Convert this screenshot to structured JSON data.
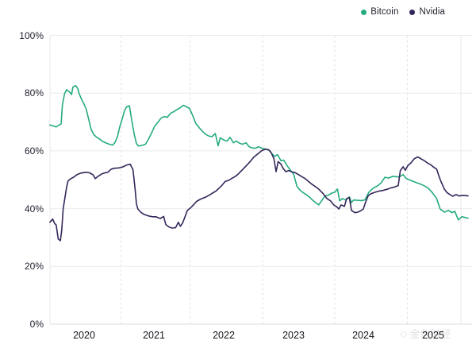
{
  "legend": {
    "items": [
      {
        "label": "Bitcoin",
        "color": "#25ab7f"
      },
      {
        "label": "Nvidia",
        "color": "#35265a"
      }
    ]
  },
  "watermark": {
    "icon": "◇",
    "text": "金色财经"
  },
  "colors": {
    "background": "#ffffff",
    "grid_horizontal": "#ebebeb",
    "grid_vertical": "#e2e2e2",
    "axis_line": "#dcdcdc",
    "plot_border": "#e8e8e8",
    "tick_text": "#222230"
  },
  "chart_data": {
    "type": "line",
    "title": "",
    "xlabel": "",
    "ylabel": "",
    "legend_position": "top-right",
    "grid": {
      "horizontal": "solid",
      "vertical": "dashed"
    },
    "x_ticks": [
      {
        "label": "2020",
        "value": 2020
      },
      {
        "label": "2021",
        "value": 2021
      },
      {
        "label": "2022",
        "value": 2022
      },
      {
        "label": "2023",
        "value": 2023
      },
      {
        "label": "2024",
        "value": 2024
      },
      {
        "label": "2025",
        "value": 2025
      }
    ],
    "y_ticks": [
      {
        "label": "0%",
        "value": 0
      },
      {
        "label": "20%",
        "value": 20
      },
      {
        "label": "40%",
        "value": 40
      },
      {
        "label": "60%",
        "value": 60
      },
      {
        "label": "80%",
        "value": 80
      },
      {
        "label": "100%",
        "value": 100
      }
    ],
    "xlim": [
      2019.5,
      2025.55
    ],
    "ylim": [
      0,
      100
    ],
    "v_gridline_x": [
      2020.53,
      2021.52,
      2022.56,
      2023.59,
      2024.63
    ],
    "series": [
      {
        "name": "Bitcoin",
        "color": "#25ab7f",
        "points": [
          [
            2019.51,
            69
          ],
          [
            2019.56,
            68.6
          ],
          [
            2019.6,
            68.3
          ],
          [
            2019.64,
            68.9
          ],
          [
            2019.67,
            69.3
          ],
          [
            2019.69,
            76
          ],
          [
            2019.72,
            79.8
          ],
          [
            2019.75,
            81.2
          ],
          [
            2019.8,
            80.2
          ],
          [
            2019.82,
            79.5
          ],
          [
            2019.84,
            82.1
          ],
          [
            2019.88,
            82.6
          ],
          [
            2019.91,
            81.5
          ],
          [
            2019.93,
            79.8
          ],
          [
            2019.97,
            77.5
          ],
          [
            2020.0,
            76.2
          ],
          [
            2020.03,
            74.5
          ],
          [
            2020.07,
            70.5
          ],
          [
            2020.1,
            67.5
          ],
          [
            2020.14,
            65.6
          ],
          [
            2020.18,
            64.7
          ],
          [
            2020.23,
            64
          ],
          [
            2020.27,
            63.2
          ],
          [
            2020.32,
            62.7
          ],
          [
            2020.36,
            62.3
          ],
          [
            2020.41,
            62
          ],
          [
            2020.44,
            62.8
          ],
          [
            2020.48,
            65
          ],
          [
            2020.51,
            68.3
          ],
          [
            2020.55,
            71.4
          ],
          [
            2020.58,
            74
          ],
          [
            2020.61,
            75.3
          ],
          [
            2020.65,
            75.6
          ],
          [
            2020.68,
            71
          ],
          [
            2020.72,
            65.5
          ],
          [
            2020.75,
            62.5
          ],
          [
            2020.78,
            61.7
          ],
          [
            2020.83,
            61.9
          ],
          [
            2020.88,
            62.3
          ],
          [
            2020.92,
            64
          ],
          [
            2020.97,
            66.4
          ],
          [
            2021.01,
            68.5
          ],
          [
            2021.06,
            70
          ],
          [
            2021.1,
            71.3
          ],
          [
            2021.15,
            71.9
          ],
          [
            2021.19,
            71.6
          ],
          [
            2021.24,
            73
          ],
          [
            2021.28,
            73.5
          ],
          [
            2021.33,
            74.3
          ],
          [
            2021.38,
            75
          ],
          [
            2021.42,
            75.8
          ],
          [
            2021.47,
            75.2
          ],
          [
            2021.51,
            74.7
          ],
          [
            2021.56,
            72
          ],
          [
            2021.6,
            69.5
          ],
          [
            2021.65,
            68
          ],
          [
            2021.69,
            66.9
          ],
          [
            2021.74,
            65.8
          ],
          [
            2021.78,
            65.2
          ],
          [
            2021.83,
            64.9
          ],
          [
            2021.88,
            66
          ],
          [
            2021.92,
            61.8
          ],
          [
            2021.95,
            64.5
          ],
          [
            2022.0,
            63.8
          ],
          [
            2022.05,
            63.4
          ],
          [
            2022.09,
            64.7
          ],
          [
            2022.14,
            62.8
          ],
          [
            2022.18,
            63.4
          ],
          [
            2022.23,
            62.6
          ],
          [
            2022.27,
            62.3
          ],
          [
            2022.32,
            62.8
          ],
          [
            2022.36,
            61.5
          ],
          [
            2022.41,
            61
          ],
          [
            2022.45,
            60.9
          ],
          [
            2022.5,
            61.4
          ],
          [
            2022.55,
            60.9
          ],
          [
            2022.59,
            60.7
          ],
          [
            2022.64,
            60.4
          ],
          [
            2022.68,
            59.3
          ],
          [
            2022.73,
            58.1
          ],
          [
            2022.77,
            58.7
          ],
          [
            2022.82,
            56.6
          ],
          [
            2022.86,
            56.8
          ],
          [
            2022.91,
            54.8
          ],
          [
            2022.95,
            53.5
          ],
          [
            2023.0,
            52
          ],
          [
            2023.05,
            47.7
          ],
          [
            2023.09,
            46.5
          ],
          [
            2023.14,
            45.5
          ],
          [
            2023.18,
            44.9
          ],
          [
            2023.23,
            44
          ],
          [
            2023.27,
            43
          ],
          [
            2023.32,
            42
          ],
          [
            2023.36,
            41.3
          ],
          [
            2023.41,
            43
          ],
          [
            2023.45,
            44.4
          ],
          [
            2023.5,
            44.7
          ],
          [
            2023.55,
            45.4
          ],
          [
            2023.59,
            45.7
          ],
          [
            2023.63,
            46.8
          ],
          [
            2023.66,
            42.7
          ],
          [
            2023.7,
            43.5
          ],
          [
            2023.75,
            43
          ],
          [
            2023.8,
            44.1
          ],
          [
            2023.83,
            42.1
          ],
          [
            2023.86,
            43
          ],
          [
            2023.91,
            42.9
          ],
          [
            2023.97,
            42.8
          ],
          [
            2024.02,
            43
          ],
          [
            2024.08,
            45.7
          ],
          [
            2024.14,
            47.1
          ],
          [
            2024.19,
            47.7
          ],
          [
            2024.25,
            48.8
          ],
          [
            2024.31,
            50.9
          ],
          [
            2024.36,
            50.6
          ],
          [
            2024.42,
            51.2
          ],
          [
            2024.48,
            51
          ],
          [
            2024.52,
            51.1
          ],
          [
            2024.57,
            51.8
          ],
          [
            2024.61,
            50.5
          ],
          [
            2024.66,
            50
          ],
          [
            2024.7,
            49.6
          ],
          [
            2024.76,
            49
          ],
          [
            2024.82,
            48.5
          ],
          [
            2024.88,
            47.8
          ],
          [
            2024.93,
            47.1
          ],
          [
            2024.99,
            45.5
          ],
          [
            2025.05,
            43.5
          ],
          [
            2025.1,
            39.9
          ],
          [
            2025.16,
            38.8
          ],
          [
            2025.22,
            39.4
          ],
          [
            2025.27,
            38.6
          ],
          [
            2025.31,
            39.1
          ],
          [
            2025.36,
            36.1
          ],
          [
            2025.41,
            37.2
          ],
          [
            2025.47,
            36.9
          ],
          [
            2025.5,
            36.7
          ]
        ]
      },
      {
        "name": "Nvidia",
        "color": "#35265a",
        "points": [
          [
            2019.51,
            35.3
          ],
          [
            2019.55,
            36.4
          ],
          [
            2019.58,
            34.8
          ],
          [
            2019.6,
            34.4
          ],
          [
            2019.63,
            29.5
          ],
          [
            2019.66,
            28.9
          ],
          [
            2019.68,
            32.5
          ],
          [
            2019.7,
            39.9
          ],
          [
            2019.73,
            44.4
          ],
          [
            2019.75,
            47.5
          ],
          [
            2019.77,
            49.6
          ],
          [
            2019.81,
            50.4
          ],
          [
            2019.85,
            50.9
          ],
          [
            2019.9,
            51.8
          ],
          [
            2019.95,
            52.3
          ],
          [
            2020.02,
            52.6
          ],
          [
            2020.08,
            52.4
          ],
          [
            2020.13,
            51.7
          ],
          [
            2020.16,
            50.4
          ],
          [
            2020.2,
            51.2
          ],
          [
            2020.25,
            52
          ],
          [
            2020.3,
            52.4
          ],
          [
            2020.34,
            52.6
          ],
          [
            2020.39,
            53.7
          ],
          [
            2020.44,
            54
          ],
          [
            2020.5,
            54.1
          ],
          [
            2020.56,
            54.5
          ],
          [
            2020.61,
            55.1
          ],
          [
            2020.66,
            55.4
          ],
          [
            2020.7,
            53.5
          ],
          [
            2020.73,
            47.1
          ],
          [
            2020.75,
            41.6
          ],
          [
            2020.77,
            39.9
          ],
          [
            2020.81,
            38.8
          ],
          [
            2020.86,
            38
          ],
          [
            2020.92,
            37.5
          ],
          [
            2020.98,
            37.2
          ],
          [
            2021.03,
            37.2
          ],
          [
            2021.09,
            36.6
          ],
          [
            2021.14,
            37.3
          ],
          [
            2021.17,
            34.5
          ],
          [
            2021.22,
            33.6
          ],
          [
            2021.26,
            33.3
          ],
          [
            2021.31,
            33.4
          ],
          [
            2021.35,
            35.3
          ],
          [
            2021.38,
            33.9
          ],
          [
            2021.41,
            35
          ],
          [
            2021.44,
            36.8
          ],
          [
            2021.48,
            39.4
          ],
          [
            2021.52,
            40.2
          ],
          [
            2021.57,
            41.4
          ],
          [
            2021.61,
            42.5
          ],
          [
            2021.66,
            43.2
          ],
          [
            2021.7,
            43.6
          ],
          [
            2021.75,
            44.1
          ],
          [
            2021.8,
            44.8
          ],
          [
            2021.84,
            45.4
          ],
          [
            2021.89,
            46.1
          ],
          [
            2021.93,
            47
          ],
          [
            2021.98,
            48.2
          ],
          [
            2022.02,
            49.4
          ],
          [
            2022.07,
            49.8
          ],
          [
            2022.11,
            50.4
          ],
          [
            2022.16,
            51.1
          ],
          [
            2022.2,
            51.8
          ],
          [
            2022.26,
            53.3
          ],
          [
            2022.32,
            54.8
          ],
          [
            2022.38,
            56.3
          ],
          [
            2022.43,
            57.8
          ],
          [
            2022.49,
            59
          ],
          [
            2022.55,
            60.2
          ],
          [
            2022.6,
            60.6
          ],
          [
            2022.65,
            60.3
          ],
          [
            2022.68,
            59.4
          ],
          [
            2022.72,
            57.2
          ],
          [
            2022.75,
            52.8
          ],
          [
            2022.78,
            56.3
          ],
          [
            2022.82,
            55.4
          ],
          [
            2022.85,
            54
          ],
          [
            2022.89,
            52.8
          ],
          [
            2022.93,
            53.2
          ],
          [
            2022.98,
            52.7
          ],
          [
            2023.02,
            52.5
          ],
          [
            2023.07,
            51.8
          ],
          [
            2023.11,
            51.2
          ],
          [
            2023.16,
            50.5
          ],
          [
            2023.2,
            49.7
          ],
          [
            2023.26,
            48.5
          ],
          [
            2023.32,
            47.5
          ],
          [
            2023.36,
            46.8
          ],
          [
            2023.42,
            45.3
          ],
          [
            2023.48,
            43.5
          ],
          [
            2023.53,
            42.7
          ],
          [
            2023.58,
            41.2
          ],
          [
            2023.61,
            40.8
          ],
          [
            2023.65,
            39.9
          ],
          [
            2023.68,
            41.3
          ],
          [
            2023.73,
            40.8
          ],
          [
            2023.76,
            43.5
          ],
          [
            2023.8,
            43.8
          ],
          [
            2023.83,
            39.4
          ],
          [
            2023.88,
            38.6
          ],
          [
            2023.92,
            38.8
          ],
          [
            2023.97,
            39.4
          ],
          [
            2024.0,
            39.9
          ],
          [
            2024.03,
            42.1
          ],
          [
            2024.07,
            44.5
          ],
          [
            2024.11,
            45.2
          ],
          [
            2024.17,
            45.7
          ],
          [
            2024.23,
            46.1
          ],
          [
            2024.28,
            46.3
          ],
          [
            2024.34,
            46.7
          ],
          [
            2024.4,
            47.2
          ],
          [
            2024.45,
            47.5
          ],
          [
            2024.5,
            48
          ],
          [
            2024.53,
            53.2
          ],
          [
            2024.57,
            54.5
          ],
          [
            2024.6,
            53.3
          ],
          [
            2024.64,
            55
          ],
          [
            2024.68,
            55.8
          ],
          [
            2024.73,
            57.3
          ],
          [
            2024.78,
            57.9
          ],
          [
            2024.83,
            57.2
          ],
          [
            2024.88,
            56.5
          ],
          [
            2024.92,
            55.8
          ],
          [
            2024.97,
            55.1
          ],
          [
            2025.01,
            54.3
          ],
          [
            2025.05,
            53.7
          ],
          [
            2025.08,
            51.5
          ],
          [
            2025.11,
            49.5
          ],
          [
            2025.16,
            46.8
          ],
          [
            2025.2,
            45.5
          ],
          [
            2025.24,
            44.9
          ],
          [
            2025.28,
            44.3
          ],
          [
            2025.33,
            44.9
          ],
          [
            2025.37,
            44.4
          ],
          [
            2025.42,
            44.6
          ],
          [
            2025.47,
            44.5
          ],
          [
            2025.5,
            44.4
          ]
        ]
      }
    ]
  }
}
